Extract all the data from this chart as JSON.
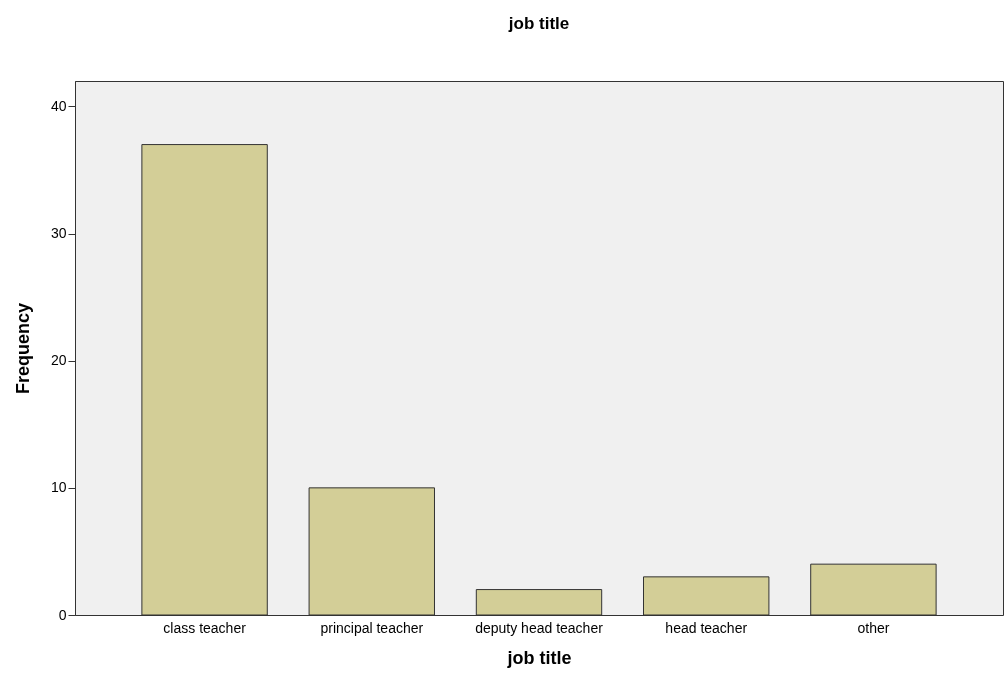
{
  "chart_data": {
    "type": "bar",
    "title": "job title",
    "xlabel": "job title",
    "ylabel": "Frequency",
    "categories": [
      "class teacher",
      "principal teacher",
      "deputy head teacher",
      "head teacher",
      "other"
    ],
    "values": [
      37,
      10,
      2,
      3,
      4
    ],
    "color": "#d3ce97",
    "ylim": [
      0,
      42
    ],
    "yticks": [
      0,
      10,
      20,
      30,
      40
    ],
    "grid": false
  }
}
